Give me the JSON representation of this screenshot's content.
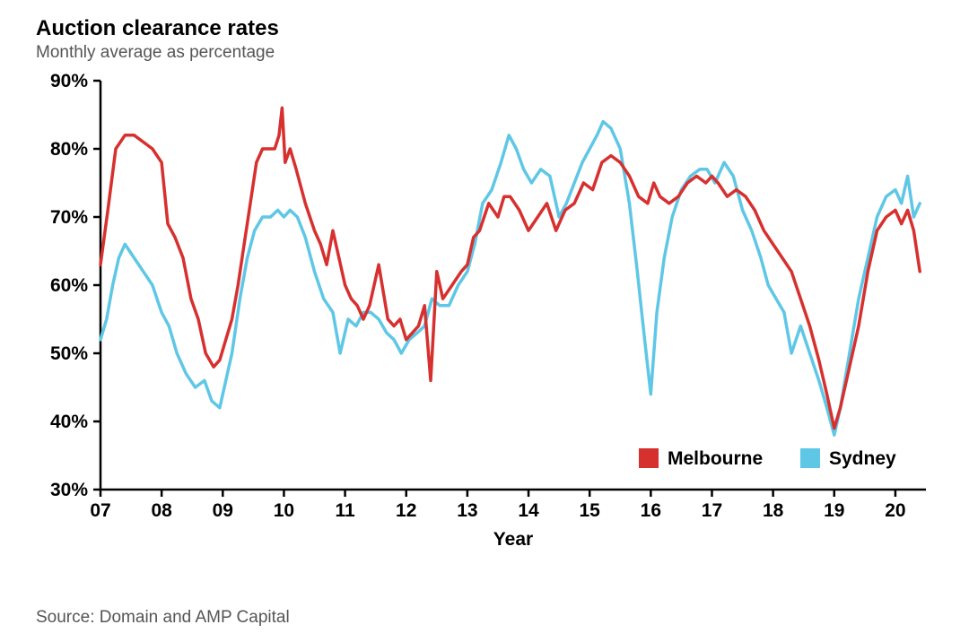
{
  "title": "Auction clearance rates",
  "subtitle": "Monthly average as percentage",
  "source": "Source: Domain and AMP Capital",
  "chart": {
    "type": "line",
    "x_axis_title": "Year",
    "background_color": "#ffffff",
    "axis_color": "#000000",
    "tick_fontsize": 21,
    "title_fontsize": 24,
    "line_width": 3.5,
    "ylim": [
      30,
      90
    ],
    "yticks": [
      30,
      40,
      50,
      60,
      70,
      80,
      90
    ],
    "ytick_labels": [
      "30%",
      "40%",
      "50%",
      "60%",
      "70%",
      "80%",
      "90%"
    ],
    "xlim": [
      2007,
      2020.5
    ],
    "xticks": [
      2007,
      2008,
      2009,
      2010,
      2011,
      2012,
      2013,
      2014,
      2015,
      2016,
      2017,
      2018,
      2019,
      2020
    ],
    "xtick_labels": [
      "07",
      "08",
      "09",
      "10",
      "11",
      "12",
      "13",
      "14",
      "15",
      "16",
      "17",
      "18",
      "19",
      "20"
    ],
    "legend": {
      "entries": [
        {
          "label": "Melbourne",
          "color": "#d6302f",
          "swatch_size": 22
        },
        {
          "label": "Sydney",
          "color": "#5fc7e6",
          "swatch_size": 22
        }
      ],
      "position": "bottom-right"
    },
    "series": [
      {
        "name": "Melbourne",
        "color": "#d6302f",
        "data": [
          [
            2007.0,
            63
          ],
          [
            2007.12,
            71
          ],
          [
            2007.25,
            80
          ],
          [
            2007.4,
            82
          ],
          [
            2007.55,
            82
          ],
          [
            2007.7,
            81
          ],
          [
            2007.85,
            80
          ],
          [
            2008.0,
            78
          ],
          [
            2008.1,
            69
          ],
          [
            2008.22,
            67
          ],
          [
            2008.35,
            64
          ],
          [
            2008.48,
            58
          ],
          [
            2008.6,
            55
          ],
          [
            2008.72,
            50
          ],
          [
            2008.85,
            48
          ],
          [
            2008.95,
            49
          ],
          [
            2009.05,
            52
          ],
          [
            2009.15,
            55
          ],
          [
            2009.25,
            60
          ],
          [
            2009.35,
            66
          ],
          [
            2009.45,
            72
          ],
          [
            2009.55,
            78
          ],
          [
            2009.65,
            80
          ],
          [
            2009.75,
            80
          ],
          [
            2009.85,
            80
          ],
          [
            2009.92,
            82
          ],
          [
            2009.97,
            86
          ],
          [
            2010.02,
            78
          ],
          [
            2010.1,
            80
          ],
          [
            2010.2,
            77
          ],
          [
            2010.35,
            72
          ],
          [
            2010.5,
            68
          ],
          [
            2010.6,
            66
          ],
          [
            2010.7,
            63
          ],
          [
            2010.8,
            68
          ],
          [
            2010.9,
            64
          ],
          [
            2011.0,
            60
          ],
          [
            2011.1,
            58
          ],
          [
            2011.2,
            57
          ],
          [
            2011.3,
            55
          ],
          [
            2011.4,
            57
          ],
          [
            2011.55,
            63
          ],
          [
            2011.7,
            55
          ],
          [
            2011.8,
            54
          ],
          [
            2011.9,
            55
          ],
          [
            2012.0,
            52
          ],
          [
            2012.1,
            53
          ],
          [
            2012.2,
            54
          ],
          [
            2012.3,
            57
          ],
          [
            2012.4,
            46
          ],
          [
            2012.5,
            62
          ],
          [
            2012.6,
            58
          ],
          [
            2012.75,
            60
          ],
          [
            2012.9,
            62
          ],
          [
            2013.0,
            63
          ],
          [
            2013.1,
            67
          ],
          [
            2013.2,
            68
          ],
          [
            2013.35,
            72
          ],
          [
            2013.5,
            70
          ],
          [
            2013.6,
            73
          ],
          [
            2013.7,
            73
          ],
          [
            2013.85,
            71
          ],
          [
            2014.0,
            68
          ],
          [
            2014.15,
            70
          ],
          [
            2014.3,
            72
          ],
          [
            2014.45,
            68
          ],
          [
            2014.6,
            71
          ],
          [
            2014.75,
            72
          ],
          [
            2014.9,
            75
          ],
          [
            2015.05,
            74
          ],
          [
            2015.2,
            78
          ],
          [
            2015.35,
            79
          ],
          [
            2015.5,
            78
          ],
          [
            2015.65,
            76
          ],
          [
            2015.8,
            73
          ],
          [
            2015.95,
            72
          ],
          [
            2016.05,
            75
          ],
          [
            2016.15,
            73
          ],
          [
            2016.3,
            72
          ],
          [
            2016.45,
            73
          ],
          [
            2016.6,
            75
          ],
          [
            2016.75,
            76
          ],
          [
            2016.9,
            75
          ],
          [
            2017.0,
            76
          ],
          [
            2017.1,
            75
          ],
          [
            2017.25,
            73
          ],
          [
            2017.4,
            74
          ],
          [
            2017.55,
            73
          ],
          [
            2017.7,
            71
          ],
          [
            2017.85,
            68
          ],
          [
            2018.0,
            66
          ],
          [
            2018.15,
            64
          ],
          [
            2018.3,
            62
          ],
          [
            2018.45,
            58
          ],
          [
            2018.6,
            54
          ],
          [
            2018.75,
            49
          ],
          [
            2018.88,
            44
          ],
          [
            2019.0,
            39
          ],
          [
            2019.1,
            42
          ],
          [
            2019.25,
            48
          ],
          [
            2019.4,
            54
          ],
          [
            2019.55,
            62
          ],
          [
            2019.7,
            68
          ],
          [
            2019.85,
            70
          ],
          [
            2020.0,
            71
          ],
          [
            2020.1,
            69
          ],
          [
            2020.2,
            71
          ],
          [
            2020.3,
            68
          ],
          [
            2020.4,
            62
          ]
        ]
      },
      {
        "name": "Sydney",
        "color": "#5fc7e6",
        "data": [
          [
            2007.0,
            52
          ],
          [
            2007.1,
            55
          ],
          [
            2007.2,
            60
          ],
          [
            2007.3,
            64
          ],
          [
            2007.4,
            66
          ],
          [
            2007.55,
            64
          ],
          [
            2007.7,
            62
          ],
          [
            2007.85,
            60
          ],
          [
            2008.0,
            56
          ],
          [
            2008.12,
            54
          ],
          [
            2008.25,
            50
          ],
          [
            2008.4,
            47
          ],
          [
            2008.55,
            45
          ],
          [
            2008.7,
            46
          ],
          [
            2008.82,
            43
          ],
          [
            2008.95,
            42
          ],
          [
            2009.05,
            46
          ],
          [
            2009.15,
            50
          ],
          [
            2009.28,
            58
          ],
          [
            2009.4,
            64
          ],
          [
            2009.52,
            68
          ],
          [
            2009.65,
            70
          ],
          [
            2009.78,
            70
          ],
          [
            2009.9,
            71
          ],
          [
            2010.0,
            70
          ],
          [
            2010.1,
            71
          ],
          [
            2010.22,
            70
          ],
          [
            2010.35,
            67
          ],
          [
            2010.5,
            62
          ],
          [
            2010.65,
            58
          ],
          [
            2010.8,
            56
          ],
          [
            2010.92,
            50
          ],
          [
            2011.05,
            55
          ],
          [
            2011.18,
            54
          ],
          [
            2011.3,
            56
          ],
          [
            2011.42,
            56
          ],
          [
            2011.55,
            55
          ],
          [
            2011.68,
            53
          ],
          [
            2011.8,
            52
          ],
          [
            2011.92,
            50
          ],
          [
            2012.05,
            52
          ],
          [
            2012.18,
            53
          ],
          [
            2012.3,
            54
          ],
          [
            2012.42,
            58
          ],
          [
            2012.55,
            57
          ],
          [
            2012.7,
            57
          ],
          [
            2012.85,
            60
          ],
          [
            2013.0,
            62
          ],
          [
            2013.12,
            66
          ],
          [
            2013.25,
            72
          ],
          [
            2013.4,
            74
          ],
          [
            2013.55,
            78
          ],
          [
            2013.68,
            82
          ],
          [
            2013.8,
            80
          ],
          [
            2013.92,
            77
          ],
          [
            2014.05,
            75
          ],
          [
            2014.2,
            77
          ],
          [
            2014.35,
            76
          ],
          [
            2014.5,
            70
          ],
          [
            2014.62,
            72
          ],
          [
            2014.75,
            75
          ],
          [
            2014.88,
            78
          ],
          [
            2015.0,
            80
          ],
          [
            2015.12,
            82
          ],
          [
            2015.22,
            84
          ],
          [
            2015.35,
            83
          ],
          [
            2015.5,
            80
          ],
          [
            2015.65,
            72
          ],
          [
            2015.78,
            62
          ],
          [
            2015.9,
            52
          ],
          [
            2016.0,
            44
          ],
          [
            2016.1,
            56
          ],
          [
            2016.22,
            64
          ],
          [
            2016.35,
            70
          ],
          [
            2016.5,
            74
          ],
          [
            2016.65,
            76
          ],
          [
            2016.8,
            77
          ],
          [
            2016.92,
            77
          ],
          [
            2017.05,
            75
          ],
          [
            2017.2,
            78
          ],
          [
            2017.35,
            76
          ],
          [
            2017.5,
            71
          ],
          [
            2017.65,
            68
          ],
          [
            2017.8,
            64
          ],
          [
            2017.92,
            60
          ],
          [
            2018.05,
            58
          ],
          [
            2018.18,
            56
          ],
          [
            2018.3,
            50
          ],
          [
            2018.45,
            54
          ],
          [
            2018.6,
            50
          ],
          [
            2018.75,
            46
          ],
          [
            2018.88,
            42
          ],
          [
            2019.0,
            38
          ],
          [
            2019.1,
            42
          ],
          [
            2019.25,
            50
          ],
          [
            2019.4,
            58
          ],
          [
            2019.55,
            64
          ],
          [
            2019.7,
            70
          ],
          [
            2019.85,
            73
          ],
          [
            2020.0,
            74
          ],
          [
            2020.1,
            72
          ],
          [
            2020.2,
            76
          ],
          [
            2020.3,
            70
          ],
          [
            2020.4,
            72
          ]
        ]
      }
    ]
  }
}
